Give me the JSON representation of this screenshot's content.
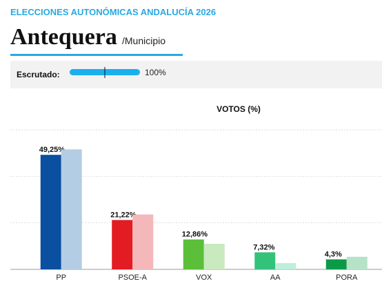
{
  "header": {
    "kicker": "ELECCIONES AUTONÓMICAS ANDALUCÍA 2026",
    "title": "Antequera",
    "subtitle": "/Municipio"
  },
  "progress": {
    "label": "Escrutado:",
    "value": 100,
    "value_label": "100%",
    "range": [
      0,
      100
    ]
  },
  "chart_data": {
    "type": "bar",
    "title": "VOTOS (%)",
    "categories": [
      "PP",
      "PSOE-A",
      "VOX",
      "AA",
      "PORA"
    ],
    "series": [
      {
        "colors": [
          "#0a4fa0",
          "#e31c23",
          "#5bbf3a",
          "#33c27a",
          "#0d9a48"
        ],
        "values": [
          49.25,
          21.22,
          12.86,
          7.32,
          4.3
        ],
        "value_labels": [
          "49,25%",
          "21,22%",
          "12,86%",
          "7,32%",
          "4,3%"
        ]
      },
      {
        "colors": [
          "#b3cde4",
          "#f4b8bb",
          "#c9e9bf",
          "#bfeeda",
          "#b6e3c7"
        ],
        "values": [
          51.6,
          23.6,
          11,
          2.7,
          5.4
        ]
      }
    ],
    "ylim": [
      0,
      60
    ],
    "yticks": [
      0,
      20,
      40,
      60
    ],
    "grid": true
  }
}
